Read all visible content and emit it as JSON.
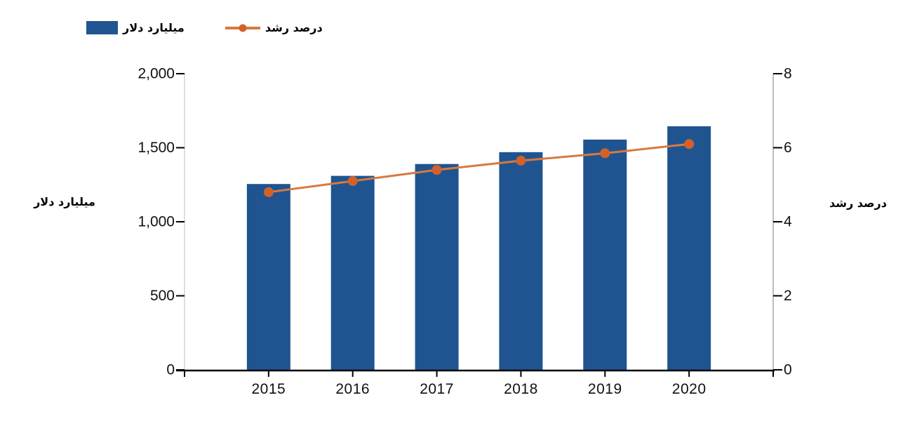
{
  "legend": {
    "bar_label": "میلیارد دلار",
    "line_label": "درصد رشد"
  },
  "axes": {
    "left_title": "میلیارد دلار",
    "right_title": "درصد رشد",
    "left_ticks": [
      "0",
      "500",
      "1,000",
      "1,500",
      "2,000"
    ],
    "right_ticks": [
      "0",
      "2",
      "4",
      "6",
      "8"
    ],
    "x_ticks": [
      "2015",
      "2016",
      "2017",
      "2018",
      "2019",
      "2020"
    ]
  },
  "chart_data": {
    "type": "bar",
    "subtype": "bar-and-line-dual-axis",
    "categories": [
      "2015",
      "2016",
      "2017",
      "2018",
      "2019",
      "2020"
    ],
    "series": [
      {
        "name": "میلیارد دلار",
        "type": "bar",
        "axis": "left",
        "values": [
          1255,
          1310,
          1390,
          1470,
          1555,
          1645
        ]
      },
      {
        "name": "درصد رشد",
        "type": "line",
        "axis": "right",
        "values": [
          4.8,
          5.1,
          5.4,
          5.65,
          5.85,
          6.1
        ]
      }
    ],
    "left_axis": {
      "label": "میلیارد دلار",
      "min": 0,
      "max": 2000,
      "tick_step": 500
    },
    "right_axis": {
      "label": "درصد رشد",
      "min": 0,
      "max": 8,
      "tick_step": 2
    },
    "grid": false,
    "legend_position": "top-left"
  },
  "colors": {
    "bar": "#1f5491",
    "line": "#d8793e",
    "dot": "#d2622a",
    "left_axis_line": "#cccccc",
    "right_axis_line": "#999999",
    "axis_dark": "#000000",
    "tick_text": "#111111"
  }
}
